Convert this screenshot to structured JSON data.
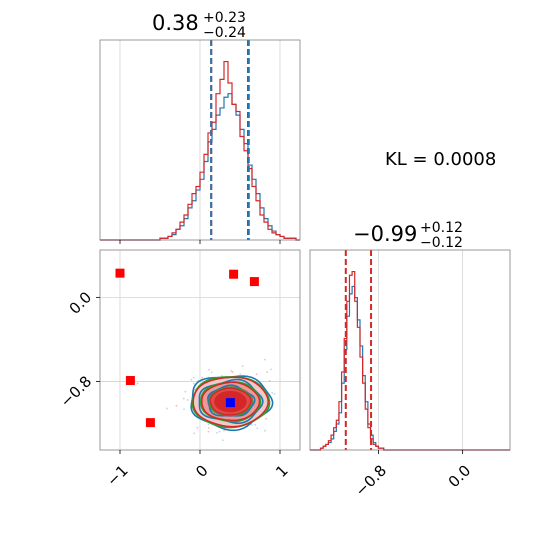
{
  "chart_data": {
    "type": "corner",
    "annotation": "KL = 0.0008",
    "panels": [
      {
        "id": "marginal-param1",
        "type": "histogram",
        "title": {
          "value": "0.38",
          "plus": "+0.23",
          "minus": "−0.24"
        },
        "xlim": [
          -1.25,
          1.25
        ],
        "grid_x": [
          -1,
          0,
          1
        ],
        "quantile_lines": [
          {
            "x": 0.14,
            "color": "#d62728"
          },
          {
            "x": 0.14,
            "color": "#1f77b4"
          },
          {
            "x": 0.6,
            "color": "#d62728"
          },
          {
            "x": 0.61,
            "color": "#1f77b4"
          }
        ],
        "series": [
          {
            "name": "blue",
            "color": "#1f77b4",
            "bin_start": -0.5,
            "bin_width": 0.05,
            "counts": [
              1,
              1,
              2,
              3,
              6,
              8,
              12,
              18,
              22,
              28,
              34,
              44,
              55,
              62,
              70,
              74,
              80,
              82,
              76,
              70,
              62,
              54,
              42,
              34,
              26,
              18,
              12,
              8,
              5,
              3,
              2,
              1,
              1,
              1
            ]
          },
          {
            "name": "red",
            "color": "#d62728",
            "bin_start": -0.5,
            "bin_width": 0.05,
            "counts": [
              1,
              1,
              2,
              4,
              6,
              10,
              14,
              20,
              26,
              30,
              38,
              48,
              60,
              66,
              82,
              90,
              100,
              88,
              76,
              72,
              58,
              50,
              40,
              30,
              22,
              14,
              10,
              6,
              4,
              3,
              2,
              1,
              1,
              1
            ]
          }
        ]
      },
      {
        "id": "marginal-param2",
        "type": "histogram",
        "title": {
          "value": "−0.99",
          "plus": "+0.12",
          "minus": "−0.12"
        },
        "xlim": [
          -1.45,
          0.45
        ],
        "grid_x": [
          -0.8,
          0.0
        ],
        "tick_labels_x": [
          "−0.8",
          "0.0"
        ],
        "quantile_lines": [
          {
            "x": -1.11,
            "color": "#d62728"
          },
          {
            "x": -0.87,
            "color": "#d62728"
          }
        ],
        "series": [
          {
            "name": "blue",
            "color": "#1f77b4",
            "bin_start": -1.35,
            "bin_width": 0.025,
            "counts": [
              1,
              2,
              3,
              4,
              6,
              10,
              14,
              20,
              36,
              54,
              72,
              84,
              88,
              82,
              70,
              56,
              40,
              26,
              14,
              8,
              4,
              2,
              1,
              1
            ]
          },
          {
            "name": "red",
            "color": "#d62728",
            "bin_start": -1.35,
            "bin_width": 0.025,
            "counts": [
              1,
              2,
              3,
              5,
              8,
              12,
              16,
              26,
              42,
              60,
              80,
              94,
              96,
              80,
              66,
              50,
              36,
              22,
              12,
              6,
              3,
              2,
              1,
              1
            ]
          }
        ]
      },
      {
        "id": "joint",
        "type": "scatter-contour",
        "xlim": [
          -1.25,
          1.25
        ],
        "ylim": [
          -1.45,
          0.45
        ],
        "grid_x": [
          -1,
          0,
          1
        ],
        "grid_y": [
          0.0,
          -0.8
        ],
        "tick_labels_x": [
          "−1",
          "0",
          "1"
        ],
        "tick_labels_y": [
          "0.0",
          "−0.8"
        ],
        "center": {
          "x": 0.38,
          "y": -0.99
        },
        "sigma": {
          "x": 0.24,
          "y": 0.12
        },
        "red_squares": [
          {
            "x": -1.0,
            "y": 0.23
          },
          {
            "x": 0.42,
            "y": 0.22
          },
          {
            "x": 0.68,
            "y": 0.15
          },
          {
            "x": -0.87,
            "y": -0.79
          },
          {
            "x": -0.62,
            "y": -1.19
          }
        ],
        "blue_square": {
          "x": 0.38,
          "y": -1.0
        },
        "fill_colors": [
          "#f3c9c9",
          "#e99a9a",
          "#df4a4a",
          "#d62728"
        ],
        "contour_colors": {
          "blue": "#1f77b4",
          "green": "#2ca02c",
          "red": "#d62728"
        }
      }
    ]
  }
}
